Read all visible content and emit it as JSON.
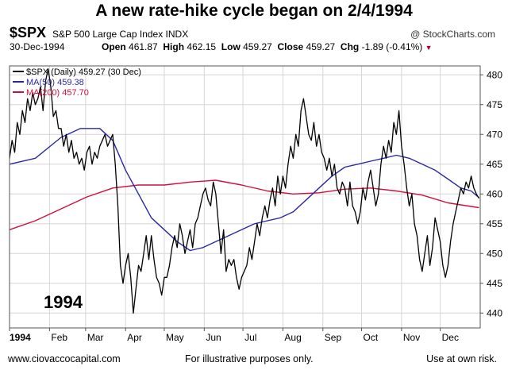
{
  "header": {
    "title": "A new rate-hike cycle began on 2/4/1994",
    "symbol": "$SPX",
    "description": "S&P 500 Large Cap Index INDX",
    "copyright": "@ StockCharts.com",
    "date": "30-Dec-1994",
    "open_label": "Open",
    "open": "461.87",
    "high_label": "High",
    "high": "462.15",
    "low_label": "Low",
    "low": "459.27",
    "close_label": "Close",
    "close": "459.27",
    "chg_label": "Chg",
    "chg": "-1.89 (-0.41%)"
  },
  "legend": [
    {
      "text": "$SPX (Daily) 459.27 (30 Dec)",
      "color": "#000000"
    },
    {
      "text": "MA(50) 459.38",
      "color": "#2a2aa0"
    },
    {
      "text": "MA(200) 457.70",
      "color": "#d0103a"
    }
  ],
  "annotation": "1994",
  "footer": {
    "left": "www.ciovaccocapital.com",
    "center": "For illustrative purposes only.",
    "right": "Use at own risk."
  },
  "chart_data": {
    "type": "line",
    "ylim": [
      437.5,
      481.5
    ],
    "y_ticks": [
      440,
      445,
      450,
      455,
      460,
      465,
      470,
      475,
      480
    ],
    "x_range": [
      0,
      365
    ],
    "x_tick_labels": [
      {
        "label": "1994",
        "day": 0
      },
      {
        "label": "Feb",
        "day": 31
      },
      {
        "label": "Mar",
        "day": 59
      },
      {
        "label": "Apr",
        "day": 90
      },
      {
        "label": "May",
        "day": 120
      },
      {
        "label": "Jun",
        "day": 151
      },
      {
        "label": "Jul",
        "day": 181
      },
      {
        "label": "Aug",
        "day": 212
      },
      {
        "label": "Sep",
        "day": 243
      },
      {
        "label": "Oct",
        "day": 273
      },
      {
        "label": "Nov",
        "day": 304
      },
      {
        "label": "Dec",
        "day": 334
      }
    ],
    "grid": true,
    "legend_position": "top-left",
    "series": [
      {
        "name": "$SPX (Daily)",
        "color": "#000000",
        "points": [
          [
            0,
            466
          ],
          [
            2,
            469
          ],
          [
            4,
            467
          ],
          [
            6,
            472
          ],
          [
            8,
            470
          ],
          [
            10,
            474
          ],
          [
            12,
            472
          ],
          [
            14,
            476
          ],
          [
            16,
            474
          ],
          [
            18,
            477
          ],
          [
            20,
            475
          ],
          [
            22,
            476
          ],
          [
            24,
            478
          ],
          [
            26,
            474
          ],
          [
            28,
            479
          ],
          [
            30,
            481
          ],
          [
            32,
            478
          ],
          [
            34,
            473
          ],
          [
            36,
            474
          ],
          [
            38,
            471
          ],
          [
            40,
            471
          ],
          [
            42,
            468
          ],
          [
            44,
            470
          ],
          [
            46,
            467
          ],
          [
            48,
            469
          ],
          [
            50,
            466
          ],
          [
            52,
            467
          ],
          [
            54,
            465
          ],
          [
            56,
            466
          ],
          [
            58,
            464
          ],
          [
            60,
            467
          ],
          [
            62,
            468
          ],
          [
            64,
            465
          ],
          [
            66,
            467
          ],
          [
            68,
            466
          ],
          [
            70,
            468
          ],
          [
            72,
            469
          ],
          [
            74,
            470
          ],
          [
            76,
            468
          ],
          [
            78,
            469
          ],
          [
            80,
            470
          ],
          [
            82,
            465
          ],
          [
            84,
            458
          ],
          [
            86,
            448
          ],
          [
            88,
            445
          ],
          [
            90,
            448
          ],
          [
            92,
            450
          ],
          [
            94,
            446
          ],
          [
            96,
            440
          ],
          [
            98,
            444
          ],
          [
            100,
            448
          ],
          [
            102,
            447
          ],
          [
            104,
            450
          ],
          [
            106,
            453
          ],
          [
            108,
            449
          ],
          [
            110,
            453
          ],
          [
            112,
            449
          ],
          [
            114,
            446
          ],
          [
            116,
            445
          ],
          [
            118,
            443
          ],
          [
            120,
            446
          ],
          [
            122,
            446
          ],
          [
            124,
            448
          ],
          [
            126,
            451
          ],
          [
            128,
            453
          ],
          [
            130,
            451
          ],
          [
            132,
            455
          ],
          [
            134,
            453
          ],
          [
            136,
            450
          ],
          [
            138,
            452
          ],
          [
            140,
            454
          ],
          [
            142,
            451
          ],
          [
            144,
            455
          ],
          [
            146,
            456
          ],
          [
            148,
            458
          ],
          [
            150,
            460
          ],
          [
            152,
            461
          ],
          [
            154,
            459
          ],
          [
            156,
            458
          ],
          [
            158,
            462
          ],
          [
            160,
            460
          ],
          [
            162,
            455
          ],
          [
            164,
            450
          ],
          [
            166,
            454
          ],
          [
            168,
            447
          ],
          [
            170,
            449
          ],
          [
            172,
            448
          ],
          [
            174,
            449
          ],
          [
            176,
            446
          ],
          [
            178,
            444
          ],
          [
            180,
            446
          ],
          [
            182,
            447
          ],
          [
            184,
            448
          ],
          [
            186,
            451
          ],
          [
            188,
            449
          ],
          [
            190,
            452
          ],
          [
            192,
            455
          ],
          [
            194,
            453
          ],
          [
            196,
            456
          ],
          [
            198,
            458
          ],
          [
            200,
            456
          ],
          [
            202,
            459
          ],
          [
            204,
            461
          ],
          [
            206,
            458
          ],
          [
            208,
            463
          ],
          [
            210,
            460
          ],
          [
            212,
            463
          ],
          [
            214,
            461
          ],
          [
            216,
            465
          ],
          [
            218,
            468
          ],
          [
            220,
            466
          ],
          [
            222,
            470
          ],
          [
            224,
            468
          ],
          [
            226,
            474
          ],
          [
            228,
            476
          ],
          [
            230,
            473
          ],
          [
            232,
            470
          ],
          [
            234,
            469
          ],
          [
            236,
            472
          ],
          [
            238,
            468
          ],
          [
            240,
            470
          ],
          [
            242,
            467
          ],
          [
            244,
            466
          ],
          [
            246,
            464
          ],
          [
            248,
            466
          ],
          [
            250,
            463
          ],
          [
            252,
            465
          ],
          [
            254,
            461
          ],
          [
            256,
            460
          ],
          [
            258,
            462
          ],
          [
            260,
            461
          ],
          [
            262,
            458
          ],
          [
            264,
            462
          ],
          [
            266,
            458
          ],
          [
            268,
            457
          ],
          [
            270,
            455
          ],
          [
            272,
            457
          ],
          [
            274,
            461
          ],
          [
            276,
            459
          ],
          [
            278,
            462
          ],
          [
            280,
            464
          ],
          [
            282,
            461
          ],
          [
            284,
            458
          ],
          [
            286,
            460
          ],
          [
            288,
            465
          ],
          [
            290,
            468
          ],
          [
            292,
            466
          ],
          [
            294,
            469
          ],
          [
            296,
            467
          ],
          [
            298,
            472
          ],
          [
            300,
            470
          ],
          [
            302,
            474
          ],
          [
            304,
            468
          ],
          [
            306,
            465
          ],
          [
            308,
            461
          ],
          [
            310,
            458
          ],
          [
            312,
            460
          ],
          [
            314,
            455
          ],
          [
            316,
            453
          ],
          [
            318,
            449
          ],
          [
            320,
            447
          ],
          [
            322,
            450
          ],
          [
            324,
            453
          ],
          [
            326,
            448
          ],
          [
            328,
            451
          ],
          [
            330,
            456
          ],
          [
            332,
            454
          ],
          [
            334,
            452
          ],
          [
            336,
            448
          ],
          [
            338,
            446
          ],
          [
            340,
            448
          ],
          [
            342,
            452
          ],
          [
            344,
            455
          ],
          [
            346,
            457
          ],
          [
            348,
            459
          ],
          [
            350,
            461
          ],
          [
            352,
            460
          ],
          [
            354,
            462
          ],
          [
            356,
            461
          ],
          [
            358,
            463
          ],
          [
            360,
            461
          ],
          [
            362,
            460
          ],
          [
            364,
            459.27
          ]
        ]
      },
      {
        "name": "MA(50)",
        "color": "#2a2aa0",
        "points": [
          [
            0,
            465
          ],
          [
            20,
            466
          ],
          [
            40,
            469.5
          ],
          [
            55,
            471
          ],
          [
            70,
            471
          ],
          [
            80,
            469
          ],
          [
            90,
            464
          ],
          [
            100,
            460
          ],
          [
            110,
            456
          ],
          [
            120,
            454
          ],
          [
            130,
            452
          ],
          [
            140,
            450.5
          ],
          [
            150,
            451
          ],
          [
            160,
            452
          ],
          [
            170,
            453
          ],
          [
            180,
            454
          ],
          [
            190,
            455
          ],
          [
            200,
            455.5
          ],
          [
            210,
            456
          ],
          [
            220,
            457
          ],
          [
            230,
            459
          ],
          [
            240,
            461
          ],
          [
            250,
            463
          ],
          [
            260,
            464.5
          ],
          [
            270,
            465
          ],
          [
            280,
            465.5
          ],
          [
            290,
            466
          ],
          [
            300,
            466.5
          ],
          [
            310,
            466
          ],
          [
            320,
            465
          ],
          [
            330,
            464
          ],
          [
            340,
            462.5
          ],
          [
            350,
            461
          ],
          [
            358,
            460.5
          ],
          [
            364,
            459.38
          ]
        ]
      },
      {
        "name": "MA(200)",
        "color": "#d0103a",
        "points": [
          [
            0,
            454
          ],
          [
            20,
            455.5
          ],
          [
            40,
            457.5
          ],
          [
            60,
            459.5
          ],
          [
            80,
            461
          ],
          [
            100,
            461.5
          ],
          [
            120,
            461.5
          ],
          [
            140,
            462
          ],
          [
            160,
            462.3
          ],
          [
            180,
            461.5
          ],
          [
            200,
            460.5
          ],
          [
            220,
            460
          ],
          [
            240,
            460.2
          ],
          [
            260,
            460.8
          ],
          [
            280,
            461
          ],
          [
            300,
            460.5
          ],
          [
            320,
            459.8
          ],
          [
            340,
            458.5
          ],
          [
            364,
            457.7
          ]
        ]
      }
    ]
  }
}
